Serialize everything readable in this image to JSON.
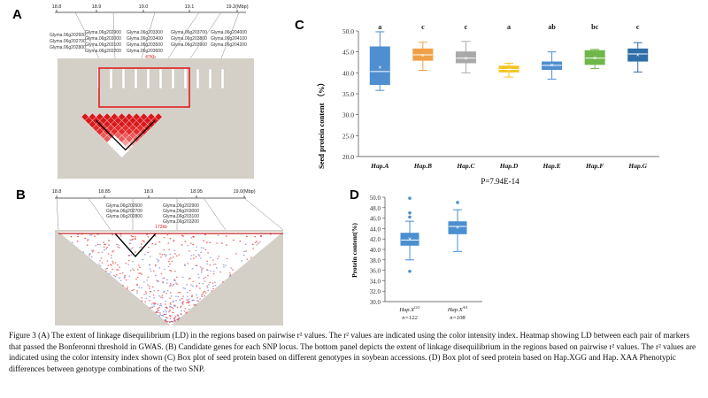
{
  "panels": {
    "A": {
      "label": "A",
      "axis_ticks": [
        "18.8",
        "18.9",
        "19.0",
        "19.1",
        "19.2(Mbp)"
      ],
      "genes": [
        "Glyma.06g202600",
        "Glyma.06g202700",
        "Glyma.06g202800",
        "Glyma.06g202900",
        "Glyma.06g203000",
        "Glyma.06g203100",
        "Glyma.06g203200",
        "Glyma.06g203300",
        "Glyma.06g203400",
        "Glyma.06g203500",
        "Glyma.06g203600",
        "Glyma.06g203700",
        "Glyma.06g203800",
        "Glyma.06g203900",
        "Glyma.06g204000",
        "Glyma.06g204100",
        "Glyma.06g204200"
      ],
      "block_label": "47Kb"
    },
    "B": {
      "label": "B",
      "axis_ticks": [
        "18.8",
        "18.85",
        "18.9",
        "18.95",
        "19.0(Mbp)"
      ],
      "genes": [
        "Glyma.06g202600",
        "Glyma.06g202700",
        "Glyma.06g202800",
        "Glyma.06g202900",
        "Glyma.06g203000",
        "Glyma.06g203100",
        "Glyma.06g203200"
      ],
      "block_label": "172kb"
    },
    "C": {
      "label": "C",
      "ylabel": "Seed protein content （%）",
      "pvalue": "P=7.94E-14"
    },
    "D": {
      "label": "D",
      "ylabel": "Protein content(%)"
    }
  },
  "chart_data": [
    {
      "type": "box",
      "panel": "C",
      "ylabel": "Seed protein content （%）",
      "ylim": [
        20.0,
        50.0
      ],
      "yticks": [
        "20.0",
        "25.0",
        "30.0",
        "35.0",
        "40.0",
        "45.0",
        "50.0"
      ],
      "categories": [
        "Hap.A",
        "Hap.B",
        "Hap.C",
        "Hap.D",
        "Hap.E",
        "Hap.F",
        "Hap.G"
      ],
      "letters": [
        "a",
        "c",
        "c",
        "a",
        "ab",
        "bc",
        "c"
      ],
      "colors": [
        "#4f8fcf",
        "#f0a046",
        "#a9a9a9",
        "#f3c61f",
        "#4f8fcf",
        "#6fb64b",
        "#2f6fa8"
      ],
      "boxes": [
        {
          "min": 35.8,
          "q1": 37.2,
          "median": 40.3,
          "mean": 41.3,
          "q3": 46.2,
          "max": 49.8
        },
        {
          "min": 40.6,
          "q1": 43.0,
          "median": 44.3,
          "mean": 44.2,
          "q3": 45.7,
          "max": 47.3
        },
        {
          "min": 40.0,
          "q1": 42.4,
          "median": 43.5,
          "mean": 43.4,
          "q3": 45.0,
          "max": 47.5
        },
        {
          "min": 39.0,
          "q1": 40.2,
          "median": 40.8,
          "mean": 40.8,
          "q3": 41.6,
          "max": 42.3
        },
        {
          "min": 38.5,
          "q1": 40.8,
          "median": 41.8,
          "mean": 41.9,
          "q3": 42.6,
          "max": 45.0
        },
        {
          "min": 41.0,
          "q1": 42.0,
          "median": 43.5,
          "mean": 43.6,
          "q3": 45.3,
          "max": 45.6
        },
        {
          "min": 40.2,
          "q1": 42.8,
          "median": 44.5,
          "mean": 44.3,
          "q3": 45.7,
          "max": 47.2
        }
      ],
      "pvalue": "P=7.94E-14"
    },
    {
      "type": "box",
      "panel": "D",
      "ylabel": "Protein content(%)",
      "ylim": [
        30.0,
        50.0
      ],
      "yticks": [
        "30.0",
        "32.0",
        "34.0",
        "36.0",
        "38.0",
        "40.0",
        "42.0",
        "44.0",
        "46.0",
        "48.0",
        "50.0"
      ],
      "categories": [
        "Hap.X^GG",
        "Hap.X^AA"
      ],
      "category_main": [
        "Hap.X",
        "Hap.X"
      ],
      "category_sup": [
        "GG",
        "AA"
      ],
      "n_labels": [
        "n=122",
        "n=108"
      ],
      "color": "#4a8fd0",
      "boxes": [
        {
          "min": 38.0,
          "q1": 40.8,
          "median": 41.8,
          "mean": 42.0,
          "q3": 43.1,
          "max": 45.4,
          "outliers": [
            35.8,
            46.2,
            47.0,
            49.8
          ]
        },
        {
          "min": 39.6,
          "q1": 43.0,
          "median": 44.4,
          "mean": 44.2,
          "q3": 45.3,
          "max": 47.6,
          "outliers": [
            49.0
          ]
        }
      ]
    }
  ],
  "caption": {
    "text": "Figure 3 (A) The extent of linkage disequilibrium (LD) in the regions based on pairwise r² values. The r² values are indicated using the color intensity index. Heatmap showing LD between each pair of markers that passed the Bonferonni threshold in GWAS. (B) Candidate genes for each SNP locus. The bottom panel depicts the extent of linkage disequilibrium in the regions based on pairwise r² values. The r² values are indicated using the color intensity index shown (C) Box plot of seed protein based on different genotypes in soybean accessions. (D) Box plot of seed protein based on Hap.XGG and Hap. XAA Phenotypic differences between genotype combinations of the two SNP."
  }
}
